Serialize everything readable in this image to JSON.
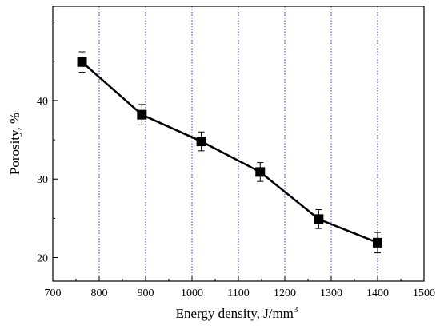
{
  "chart_data": {
    "type": "line",
    "title": "",
    "xlabel": "Energy density, J/mm",
    "xlabel_sup": "3",
    "ylabel": "Porosity, %",
    "xlim": [
      700,
      1500
    ],
    "ylim": [
      17,
      52
    ],
    "xticks": [
      700,
      800,
      900,
      1000,
      1100,
      1200,
      1300,
      1400,
      1500
    ],
    "yticks": [
      20,
      30,
      40
    ],
    "grid": {
      "vertical": true,
      "horizontal": false,
      "color": "#3333cc",
      "style": "dotted"
    },
    "series": [
      {
        "marker": "square",
        "color": "#000000",
        "x": [
          763,
          892,
          1020,
          1147,
          1273,
          1400
        ],
        "y": [
          44.9,
          38.2,
          34.8,
          30.9,
          24.9,
          21.9
        ],
        "yerr": [
          1.3,
          1.3,
          1.2,
          1.2,
          1.2,
          1.3
        ]
      }
    ]
  }
}
